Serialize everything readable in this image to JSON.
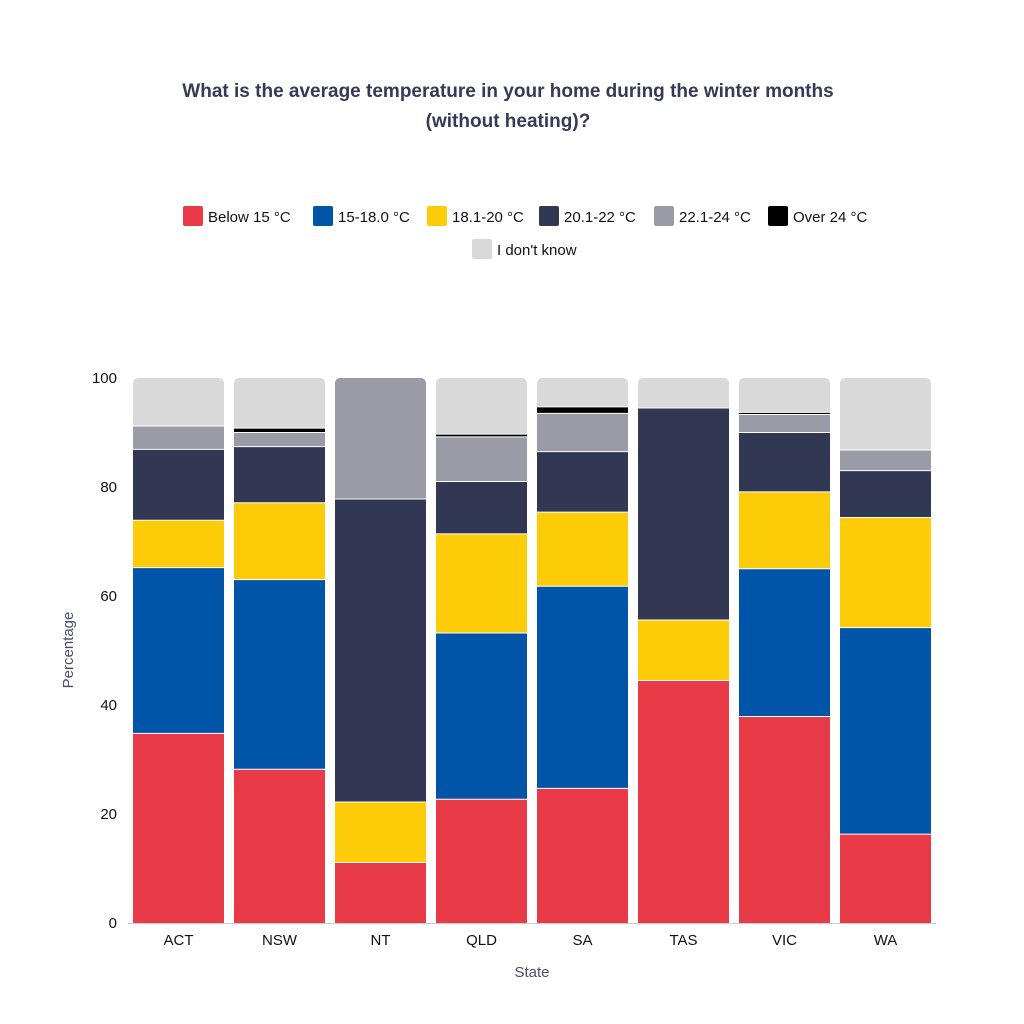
{
  "chart_data": {
    "type": "bar",
    "stacked": true,
    "title_line1": "What is the average temperature in your home during the winter months",
    "title_line2": "(without heating)?",
    "xlabel": "State",
    "ylabel": "Percentage",
    "ylim": [
      0,
      100
    ],
    "yticks": [
      "0",
      "20",
      "40",
      "60",
      "80",
      "100"
    ],
    "categories": [
      "ACT",
      "NSW",
      "NT",
      "QLD",
      "SA",
      "TAS",
      "VIC",
      "WA"
    ],
    "legend_position": "top-center",
    "series": [
      {
        "name": "Below 15 °C",
        "color": "#e93a48",
        "values": [
          34.8,
          28.2,
          11.1,
          22.7,
          24.7,
          44.5,
          37.9,
          16.3
        ]
      },
      {
        "name": "15-18.0 °C",
        "color": "#0055a8",
        "values": [
          30.4,
          34.8,
          0,
          30.5,
          37.1,
          0,
          27.1,
          37.9
        ]
      },
      {
        "name": "18.1-20 °C",
        "color": "#fdcc08",
        "values": [
          8.7,
          14.1,
          11.1,
          18.2,
          13.6,
          11.1,
          14.1,
          20.2
        ]
      },
      {
        "name": "20.1-22 °C",
        "color": "#323754",
        "values": [
          13.0,
          10.3,
          55.6,
          9.6,
          11.1,
          38.9,
          10.9,
          8.6
        ]
      },
      {
        "name": "22.1-24 °C",
        "color": "#9a9ba6",
        "values": [
          4.3,
          2.6,
          22.2,
          8.2,
          7.0,
          0,
          3.3,
          3.8
        ]
      },
      {
        "name": "Over 24 °C",
        "color": "#000000",
        "values": [
          0,
          0.8,
          0,
          0.5,
          1.2,
          0,
          0.4,
          0
        ]
      },
      {
        "name": "I don't know",
        "color": "#d9d9d9",
        "values": [
          8.8,
          9.2,
          0,
          10.3,
          5.3,
          5.5,
          6.3,
          13.2
        ]
      }
    ]
  }
}
